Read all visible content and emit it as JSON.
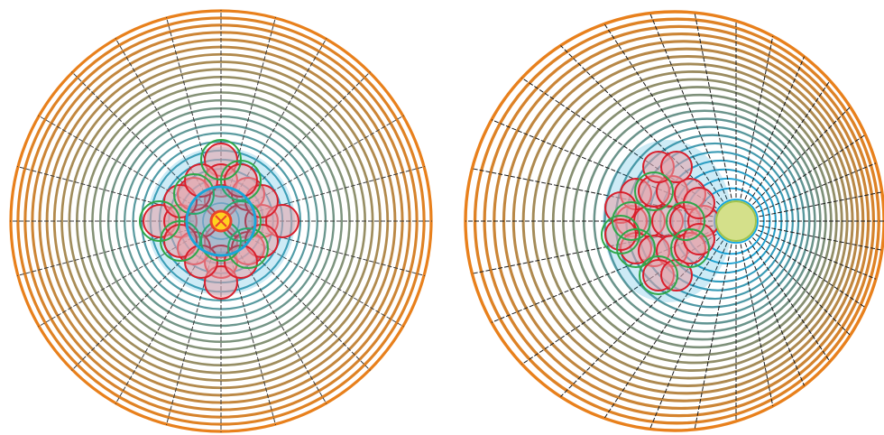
{
  "figure": {
    "panels": [
      {
        "id": "left",
        "variant": "centered",
        "ring_count": 24,
        "spoke_count": 24,
        "inner_color": "#1aa6d8",
        "outer_color": "#e8801c",
        "spoke_color": "#3a3a3a",
        "petal_fill": "#e8a0a8",
        "petal_stroke": "#d91f2c",
        "petal_outline": "#2fa84a",
        "glow_color": "#1aa6d8",
        "center_color": "#ffd21f",
        "center_stroke": "#e8442c"
      },
      {
        "id": "right",
        "variant": "offset",
        "ring_count": 24,
        "spoke_count": 32,
        "inner_color": "#0aa3e0",
        "outer_color": "#e8801c",
        "spoke_color": "#1a1a1a",
        "petal_fill": "#e8a0a8",
        "petal_stroke": "#d91f2c",
        "petal_outline": "#2fa84a",
        "glow_color": "#1aa6d8",
        "center_color": "#d4e08a",
        "center_stroke": "#9fc24a"
      }
    ]
  }
}
